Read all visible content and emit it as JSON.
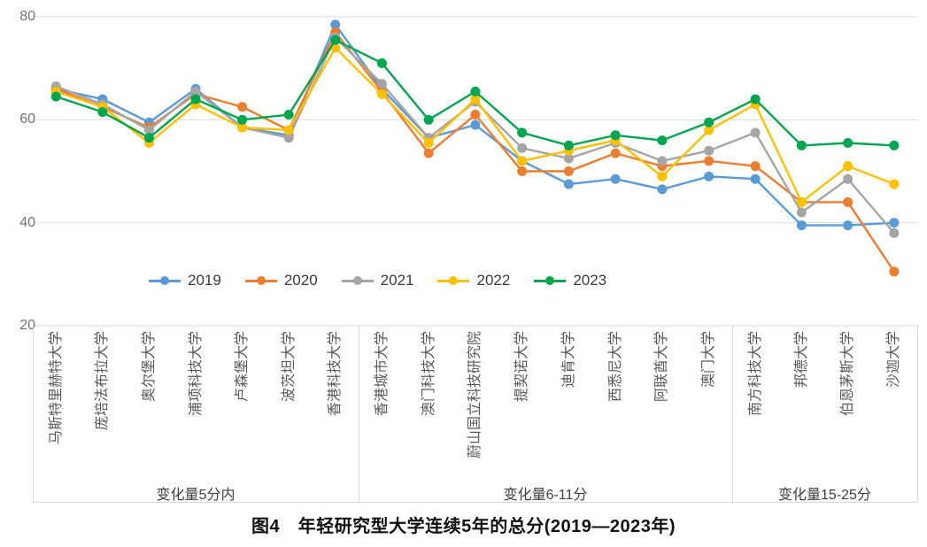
{
  "figure": {
    "caption": "图4　年轻研究型大学连续5年的总分(2019—2023年)"
  },
  "chart_data": {
    "type": "line",
    "title": "年轻研究型大学连续5年的总分(2019—2023年)",
    "xlabel": "",
    "ylabel": "",
    "ylim": [
      20,
      80
    ],
    "yticks": [
      20,
      40,
      60,
      80
    ],
    "grid": true,
    "legend_position": "bottom-inside-left",
    "marker": "circle",
    "categories": [
      "马斯特里赫特大学",
      "庞培法布拉大学",
      "奥尔堡大学",
      "浦项科技大学",
      "卢森堡大学",
      "波茨坦大学",
      "香港科技大学",
      "香港城市大学",
      "澳门科技大学",
      "蔚山国立科技研究院",
      "提契诺大学",
      "迪肯大学",
      "西悉尼大学",
      "阿联酋大学",
      "澳门大学",
      "南方科技大学",
      "邦德大学",
      "伯恩茅斯大学",
      "沙迦大学"
    ],
    "groups": [
      {
        "label": "变化量5分内",
        "from": 0,
        "to": 6
      },
      {
        "label": "变化量6-11分",
        "from": 7,
        "to": 14
      },
      {
        "label": "变化量15-25分",
        "from": 15,
        "to": 18
      }
    ],
    "series": [
      {
        "name": "2019",
        "color": "#5B9BD5",
        "values": [
          66,
          64,
          59.5,
          66,
          58.5,
          57,
          78.5,
          66,
          56.5,
          59,
          52,
          47.5,
          48.5,
          46.5,
          49,
          48.5,
          39.5,
          39.5,
          40
        ]
      },
      {
        "name": "2020",
        "color": "#ED7D31",
        "values": [
          66,
          62.5,
          58.5,
          65,
          62.5,
          58,
          77,
          65.5,
          53.5,
          61,
          50,
          50,
          53.5,
          51,
          52,
          51,
          44,
          44,
          30.5
        ]
      },
      {
        "name": "2021",
        "color": "#A5A5A5",
        "values": [
          66.5,
          63,
          58,
          65.5,
          58.5,
          56.5,
          76,
          67,
          56.5,
          63.5,
          54.5,
          52.5,
          55.5,
          52,
          54,
          57.5,
          42,
          48.5,
          38
        ]
      },
      {
        "name": "2022",
        "color": "#FFC000",
        "values": [
          65.5,
          62.5,
          55.5,
          63,
          58.5,
          58,
          74,
          65,
          55.5,
          64,
          52,
          54,
          56,
          49,
          58,
          63,
          44,
          51,
          47.5
        ]
      },
      {
        "name": "2023",
        "color": "#00A550",
        "values": [
          64.5,
          61.5,
          56.5,
          64,
          60,
          61,
          75.5,
          71,
          60,
          65.5,
          57.5,
          55,
          57,
          56,
          59.5,
          64,
          55,
          55.5,
          55
        ]
      }
    ]
  }
}
